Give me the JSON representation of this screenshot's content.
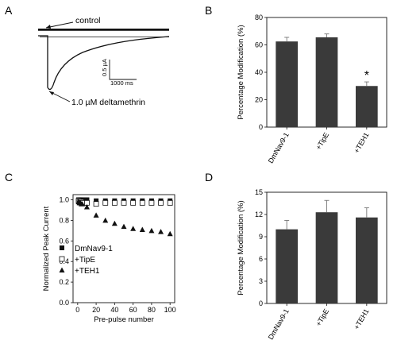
{
  "panels": {
    "A": {
      "label": "A"
    },
    "B": {
      "label": "B"
    },
    "C": {
      "label": "C"
    },
    "D": {
      "label": "D"
    }
  },
  "trace_panel": {
    "control_label": "control",
    "deltamethrin_label": "1.0 µM deltamethrin",
    "scale_current": "0.5 µA",
    "scale_time": "1000 ms"
  },
  "chart_data": [
    {
      "id": "B",
      "type": "bar",
      "categories": [
        "DmNav9-1",
        "+TipE",
        "+TEH1"
      ],
      "values": [
        62.5,
        65.5,
        30
      ],
      "errors": [
        3,
        2.5,
        3
      ],
      "ylabel": "Percentage Modification (%)",
      "ylim": [
        0,
        80
      ],
      "yticks": [
        0,
        20,
        40,
        60,
        80
      ],
      "annotations": [
        {
          "category": "+TEH1",
          "text": "*"
        }
      ],
      "bar_color": "#3a3a3a",
      "grid": false
    },
    {
      "id": "C",
      "type": "scatter",
      "xlabel": "Pre-pulse number",
      "ylabel": "Normalized Peak Current",
      "xlim": [
        -5,
        105
      ],
      "ylim": [
        0,
        1.05
      ],
      "xticks": [
        0,
        20,
        40,
        60,
        80,
        100
      ],
      "yticks": [
        0.0,
        0.2,
        0.4,
        0.6,
        0.8,
        1.0
      ],
      "legend_position": "bottom-left",
      "series": [
        {
          "name": "DmNav9-1",
          "marker": "square-filled",
          "x": [
            1,
            2,
            3,
            4,
            5,
            10,
            20,
            30,
            40,
            50,
            60,
            70,
            80,
            90,
            100
          ],
          "y": [
            1.0,
            1.0,
            1.0,
            1.0,
            1.0,
            1.0,
            0.99,
            0.99,
            0.99,
            0.99,
            0.99,
            0.99,
            0.99,
            0.99,
            0.99
          ]
        },
        {
          "name": "+TipE",
          "marker": "square-open",
          "x": [
            1,
            2,
            3,
            4,
            5,
            10,
            20,
            30,
            40,
            50,
            60,
            70,
            80,
            90,
            100
          ],
          "y": [
            0.99,
            0.98,
            0.98,
            0.98,
            0.97,
            0.97,
            0.96,
            0.97,
            0.97,
            0.97,
            0.97,
            0.97,
            0.97,
            0.97,
            0.97
          ]
        },
        {
          "name": "+TEH1",
          "marker": "triangle-filled",
          "x": [
            1,
            2,
            3,
            4,
            5,
            10,
            20,
            30,
            40,
            50,
            60,
            70,
            80,
            90,
            100
          ],
          "y": [
            0.98,
            0.97,
            0.97,
            0.96,
            0.96,
            0.93,
            0.85,
            0.8,
            0.77,
            0.74,
            0.72,
            0.71,
            0.7,
            0.69,
            0.67
          ]
        }
      ]
    },
    {
      "id": "D",
      "type": "bar",
      "categories": [
        "DmNav9-1",
        "+TipE",
        "+TEH1"
      ],
      "values": [
        10,
        12.3,
        11.6
      ],
      "errors": [
        1.2,
        1.6,
        1.3
      ],
      "ylabel": "Percentage Modification (%)",
      "ylim": [
        0,
        15
      ],
      "yticks": [
        0,
        3,
        6,
        9,
        12,
        15
      ],
      "bar_color": "#3a3a3a",
      "grid": false
    }
  ]
}
